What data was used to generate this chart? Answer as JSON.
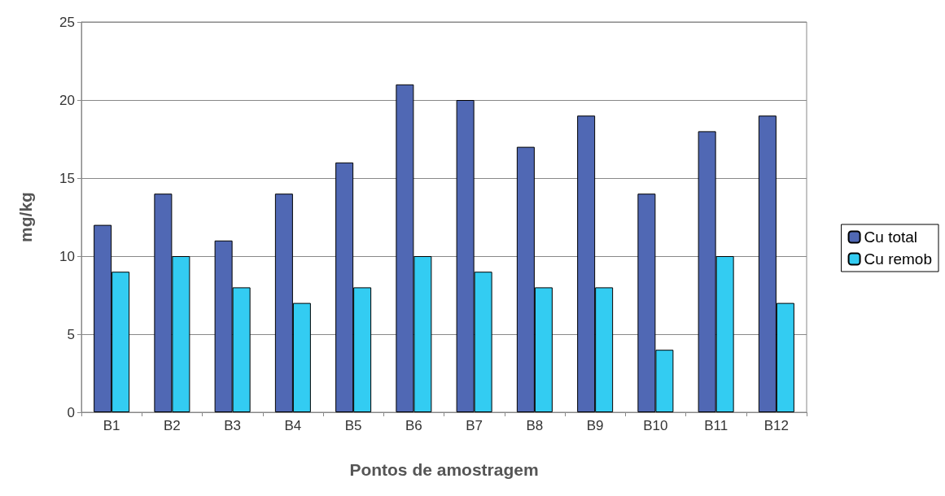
{
  "chart_data": {
    "type": "bar",
    "xlabel": "Pontos de amostragem",
    "ylabel": "mg/kg",
    "categories": [
      "B1",
      "B2",
      "B3",
      "B4",
      "B5",
      "B6",
      "B7",
      "B8",
      "B9",
      "B10",
      "B11",
      "B12"
    ],
    "series": [
      {
        "name": "Cu total",
        "color": "#5068b4",
        "values": [
          12,
          14,
          11,
          14,
          16,
          21,
          20,
          17,
          19,
          14,
          18,
          19
        ]
      },
      {
        "name": "Cu remob",
        "color": "#33ccf2",
        "values": [
          9,
          10,
          8,
          7,
          8,
          10,
          9,
          8,
          8,
          4,
          10,
          7
        ]
      }
    ],
    "ylim": [
      0,
      25
    ],
    "yticks": [
      0,
      5,
      10,
      15,
      20,
      25
    ],
    "grid": "y",
    "legend": "right"
  }
}
